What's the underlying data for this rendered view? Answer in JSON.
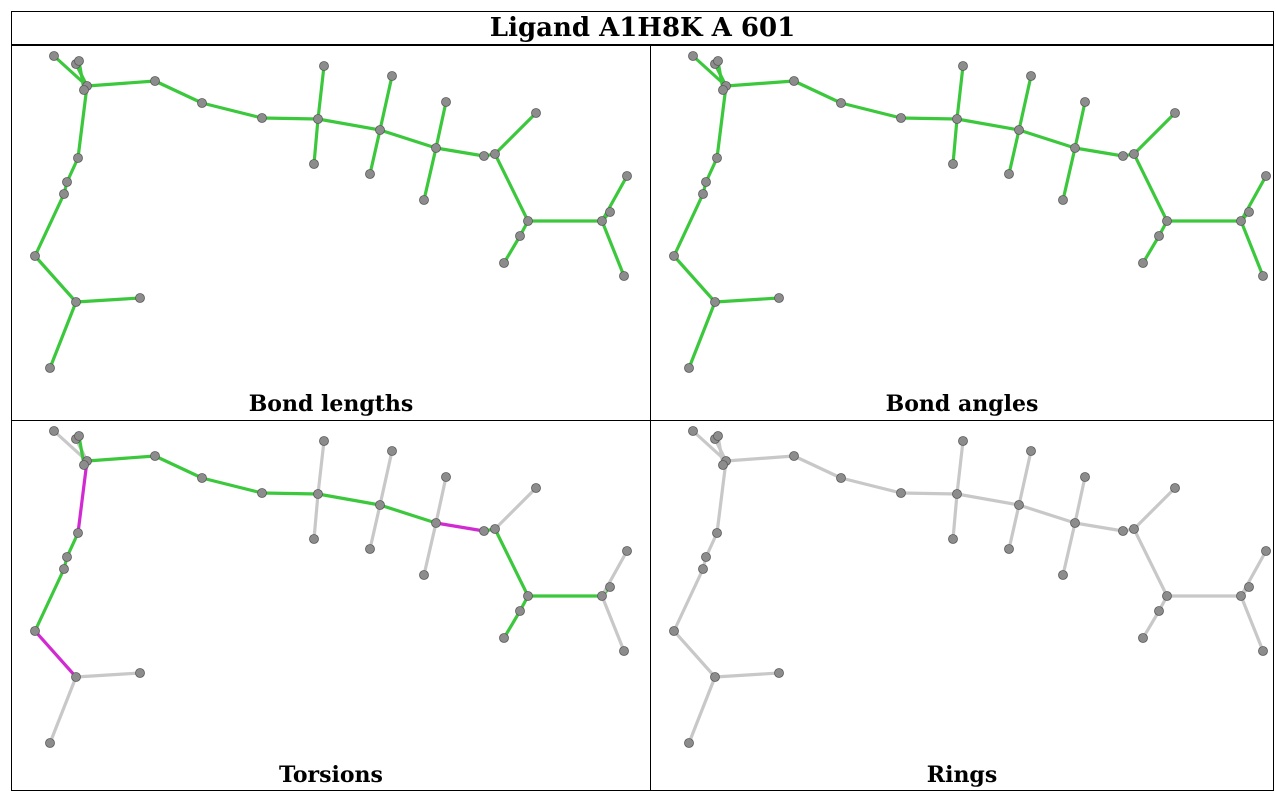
{
  "title": "Ligand A1H8K A 601",
  "panels": [
    {
      "caption": "Bond lengths"
    },
    {
      "caption": "Bond angles"
    },
    {
      "caption": "Torsions"
    },
    {
      "caption": "Rings"
    }
  ],
  "colors": {
    "ok_bond": "#3cc83c",
    "outlier_bond": "#d22ad2",
    "neutral_bond": "#c8c8c8",
    "atom": "#8c8c8c"
  }
}
